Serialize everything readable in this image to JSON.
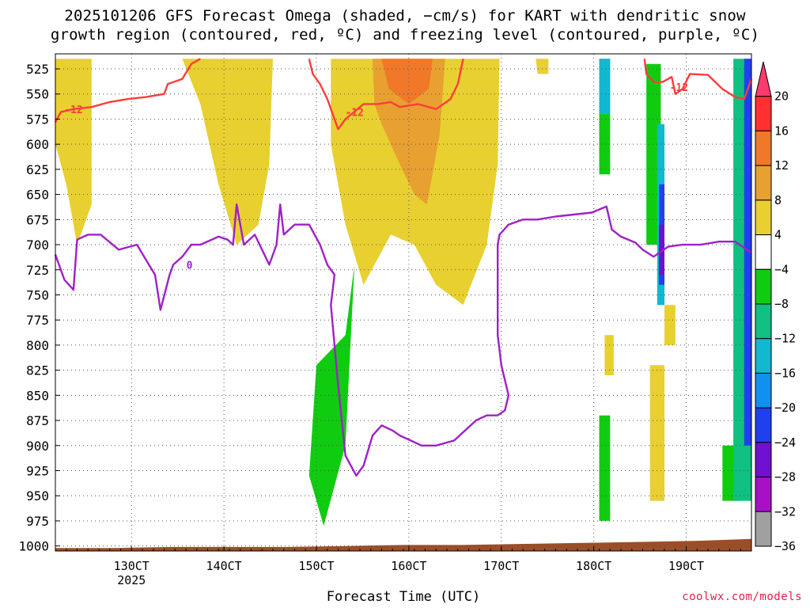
{
  "page": {
    "title_line1": "2025101206 GFS Forecast Omega (shaded, −cm/s) for KART with dendritic snow",
    "title_line2": "growth region (contoured, red, ºC) and freezing level (contoured, purple, ºC)",
    "credit": "coolwx.com/models"
  },
  "chart_data": {
    "type": "heatmap",
    "title": "2025101206 GFS Forecast Omega (shaded, −cm/s) for KART with dendritic snow growth region (contoured, red, ºC) and freezing level (contoured, purple, ºC)",
    "xlabel": "Forecast Time (UTC)",
    "ylabel": "",
    "x_range_hours": [
      0,
      384
    ],
    "x_ticks": [
      {
        "label": "130CT",
        "sublabel": "2025",
        "hour": 42
      },
      {
        "label": "140CT",
        "sublabel": "",
        "hour": 93
      },
      {
        "label": "150CT",
        "sublabel": "",
        "hour": 144
      },
      {
        "label": "160CT",
        "sublabel": "",
        "hour": 195
      },
      {
        "label": "170CT",
        "sublabel": "",
        "hour": 246
      },
      {
        "label": "180CT",
        "sublabel": "",
        "hour": 297
      },
      {
        "label": "190CT",
        "sublabel": "",
        "hour": 348
      }
    ],
    "y_axis_pressure_hpa": [
      525,
      550,
      575,
      600,
      625,
      650,
      675,
      700,
      725,
      750,
      775,
      800,
      825,
      850,
      875,
      900,
      925,
      950,
      975,
      1000
    ],
    "y_range_hpa": [
      510,
      1005
    ],
    "grid": true,
    "colorbar": {
      "labels": [
        "20",
        "16",
        "12",
        "8",
        "4",
        "−4",
        "−8",
        "−12",
        "−16",
        "−20",
        "−24",
        "−28",
        "−32",
        "−36"
      ],
      "colors": [
        "#ff3b6e",
        "#ff3030",
        "#f07828",
        "#e8a030",
        "#e8d030",
        "#ffffff",
        "#10cc10",
        "#10c080",
        "#10b8d0",
        "#1090f0",
        "#2040f0",
        "#7010d0",
        "#a810c8",
        "#a0a0a0"
      ]
    },
    "omega_regions": [
      {
        "value": 6,
        "pts": [
          [
            0,
            515
          ],
          [
            20,
            515
          ],
          [
            20,
            660
          ],
          [
            12,
            700
          ],
          [
            6,
            640
          ],
          [
            0,
            600
          ]
        ]
      },
      {
        "value": 5,
        "pts": [
          [
            70,
            515
          ],
          [
            120,
            515
          ],
          [
            118,
            620
          ],
          [
            112,
            680
          ],
          [
            100,
            700
          ],
          [
            90,
            640
          ],
          [
            80,
            560
          ]
        ]
      },
      {
        "value": 6,
        "pts": [
          [
            152,
            515
          ],
          [
            245,
            515
          ],
          [
            244,
            620
          ],
          [
            238,
            700
          ],
          [
            225,
            760
          ],
          [
            210,
            740
          ],
          [
            198,
            700
          ],
          [
            185,
            690
          ],
          [
            170,
            740
          ],
          [
            160,
            680
          ],
          [
            152,
            600
          ]
        ]
      },
      {
        "value": 10,
        "pts": [
          [
            175,
            515
          ],
          [
            215,
            515
          ],
          [
            212,
            590
          ],
          [
            205,
            660
          ],
          [
            198,
            650
          ],
          [
            190,
            620
          ],
          [
            180,
            580
          ],
          [
            176,
            560
          ]
        ]
      },
      {
        "value": 14,
        "pts": [
          [
            180,
            515
          ],
          [
            208,
            515
          ],
          [
            206,
            545
          ],
          [
            195,
            560
          ],
          [
            184,
            545
          ]
        ]
      },
      {
        "value": 5,
        "pts": [
          [
            265,
            515
          ],
          [
            272,
            515
          ],
          [
            272,
            530
          ],
          [
            266,
            530
          ]
        ]
      },
      {
        "value": 5,
        "pts": [
          [
            303,
            790
          ],
          [
            308,
            790
          ],
          [
            308,
            830
          ],
          [
            303,
            830
          ]
        ]
      },
      {
        "value": 7,
        "pts": [
          [
            328,
            820
          ],
          [
            336,
            820
          ],
          [
            336,
            955
          ],
          [
            328,
            955
          ]
        ]
      },
      {
        "value": 5,
        "pts": [
          [
            336,
            760
          ],
          [
            342,
            760
          ],
          [
            342,
            800
          ],
          [
            336,
            800
          ]
        ]
      },
      {
        "value": -6,
        "pts": [
          [
            144,
            820
          ],
          [
            160,
            790
          ],
          [
            165,
            720
          ],
          [
            160,
            900
          ],
          [
            148,
            980
          ],
          [
            140,
            930
          ]
        ]
      },
      {
        "value": -6,
        "pts": [
          [
            300,
            515
          ],
          [
            306,
            515
          ],
          [
            306,
            630
          ],
          [
            300,
            630
          ]
        ]
      },
      {
        "value": -6,
        "pts": [
          [
            326,
            520
          ],
          [
            334,
            520
          ],
          [
            334,
            700
          ],
          [
            326,
            700
          ]
        ]
      },
      {
        "value": -6,
        "pts": [
          [
            300,
            870
          ],
          [
            306,
            870
          ],
          [
            306,
            975
          ],
          [
            300,
            975
          ]
        ]
      },
      {
        "value": -6,
        "pts": [
          [
            368,
            900
          ],
          [
            378,
            900
          ],
          [
            378,
            955
          ],
          [
            368,
            955
          ]
        ]
      },
      {
        "value": -10,
        "pts": [
          [
            374,
            515
          ],
          [
            384,
            515
          ],
          [
            384,
            955
          ],
          [
            374,
            955
          ]
        ]
      },
      {
        "value": -14,
        "pts": [
          [
            300,
            515
          ],
          [
            306,
            515
          ],
          [
            306,
            570
          ],
          [
            300,
            570
          ]
        ]
      },
      {
        "value": -14,
        "pts": [
          [
            332,
            580
          ],
          [
            336,
            580
          ],
          [
            336,
            760
          ],
          [
            332,
            760
          ]
        ]
      },
      {
        "value": -22,
        "pts": [
          [
            333,
            640
          ],
          [
            336,
            640
          ],
          [
            336,
            740
          ],
          [
            333,
            740
          ]
        ]
      },
      {
        "value": -22,
        "pts": [
          [
            380,
            515
          ],
          [
            384,
            515
          ],
          [
            384,
            900
          ],
          [
            380,
            900
          ]
        ]
      },
      {
        "value": -26,
        "pts": [
          [
            333,
            680
          ],
          [
            336,
            680
          ],
          [
            336,
            730
          ],
          [
            333,
            730
          ]
        ]
      }
    ],
    "dgz_contours": [
      {
        "label": "-12",
        "label_at": [
          10,
          565
        ],
        "pts": [
          [
            0,
            578
          ],
          [
            3,
            568
          ],
          [
            10,
            565
          ],
          [
            20,
            563
          ],
          [
            30,
            558
          ],
          [
            40,
            555
          ],
          [
            50,
            553
          ],
          [
            60,
            550
          ],
          [
            62,
            540
          ],
          [
            70,
            535
          ],
          [
            75,
            520
          ],
          [
            80,
            515
          ]
        ]
      },
      {
        "label": "-12",
        "label_at": [
          165,
          568
        ],
        "pts": [
          [
            140,
            515
          ],
          [
            142,
            530
          ],
          [
            146,
            540
          ],
          [
            150,
            555
          ],
          [
            156,
            585
          ],
          [
            160,
            575
          ],
          [
            170,
            560
          ],
          [
            178,
            560
          ],
          [
            185,
            558
          ],
          [
            190,
            563
          ],
          [
            200,
            560
          ],
          [
            210,
            565
          ],
          [
            218,
            555
          ],
          [
            222,
            540
          ],
          [
            225,
            515
          ]
        ]
      },
      {
        "label": "-12",
        "label_at": [
          344,
          543
        ],
        "pts": [
          [
            325,
            515
          ],
          [
            326,
            530
          ],
          [
            330,
            538
          ],
          [
            335,
            538
          ],
          [
            340,
            533
          ],
          [
            342,
            550
          ],
          [
            346,
            545
          ],
          [
            350,
            530
          ],
          [
            360,
            531
          ],
          [
            368,
            545
          ],
          [
            375,
            553
          ],
          [
            380,
            555
          ],
          [
            384,
            535
          ]
        ]
      }
    ],
    "freezing_contours": [
      {
        "label": "0",
        "label_at": [
          74,
          720
        ],
        "pts": [
          [
            0,
            710
          ],
          [
            5,
            735
          ],
          [
            10,
            745
          ],
          [
            12,
            695
          ],
          [
            18,
            690
          ],
          [
            25,
            690
          ],
          [
            35,
            705
          ],
          [
            45,
            700
          ],
          [
            55,
            730
          ],
          [
            58,
            765
          ],
          [
            63,
            730
          ],
          [
            65,
            720
          ],
          [
            70,
            712
          ],
          [
            75,
            700
          ],
          [
            80,
            700
          ],
          [
            90,
            692
          ],
          [
            95,
            695
          ],
          [
            98,
            700
          ],
          [
            100,
            660
          ],
          [
            104,
            700
          ],
          [
            110,
            690
          ],
          [
            118,
            720
          ],
          [
            122,
            700
          ],
          [
            124,
            660
          ],
          [
            126,
            690
          ],
          [
            132,
            680
          ],
          [
            140,
            680
          ],
          [
            146,
            700
          ],
          [
            150,
            720
          ],
          [
            154,
            730
          ],
          [
            152,
            760
          ],
          [
            156,
            840
          ],
          [
            160,
            910
          ],
          [
            166,
            930
          ],
          [
            170,
            920
          ],
          [
            175,
            890
          ],
          [
            180,
            880
          ],
          [
            186,
            885
          ],
          [
            190,
            890
          ],
          [
            196,
            895
          ],
          [
            202,
            900
          ],
          [
            210,
            900
          ],
          [
            220,
            895
          ],
          [
            232,
            875
          ],
          [
            238,
            870
          ],
          [
            244,
            870
          ],
          [
            248,
            865
          ],
          [
            250,
            850
          ],
          [
            246,
            820
          ],
          [
            244,
            790
          ],
          [
            244,
            700
          ],
          [
            245,
            690
          ],
          [
            250,
            680
          ],
          [
            258,
            675
          ],
          [
            266,
            675
          ],
          [
            276,
            672
          ],
          [
            286,
            670
          ],
          [
            296,
            668
          ],
          [
            304,
            662
          ],
          [
            307,
            685
          ],
          [
            312,
            692
          ],
          [
            320,
            698
          ],
          [
            324,
            705
          ],
          [
            330,
            712
          ],
          [
            338,
            702
          ],
          [
            346,
            700
          ],
          [
            356,
            700
          ],
          [
            366,
            697
          ],
          [
            375,
            697
          ],
          [
            384,
            708
          ]
        ]
      }
    ],
    "terrain_pressure_hpa": [
      1002,
      1002,
      1001,
      1001,
      1001,
      1000,
      999,
      999,
      998,
      997,
      996,
      995,
      993
    ]
  }
}
